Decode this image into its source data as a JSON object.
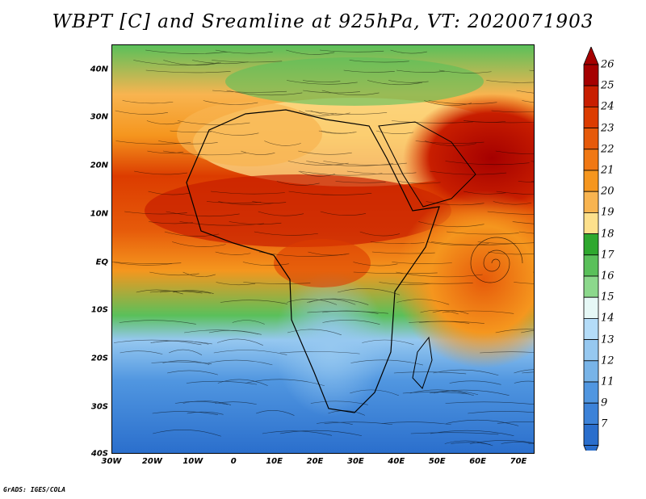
{
  "title": "WBPT [C] and Sreamline at 925hPa, VT: 2020071903",
  "lat_ticks": [
    "40N",
    "30N",
    "20N",
    "10N",
    "EQ",
    "10S",
    "20S",
    "30S",
    "40S"
  ],
  "lon_ticks": [
    "30W",
    "20W",
    "10W",
    "0",
    "10E",
    "20E",
    "30E",
    "40E",
    "50E",
    "60E",
    "70E"
  ],
  "colorbar": {
    "labels": [
      "26",
      "25",
      "24",
      "23",
      "22",
      "21",
      "20",
      "19",
      "18",
      "17",
      "16",
      "15",
      "14",
      "13",
      "12",
      "11",
      "9",
      "7"
    ],
    "colors": [
      "#a50000",
      "#c81e00",
      "#dc3c00",
      "#e65a0a",
      "#f07814",
      "#f5961e",
      "#f8b450",
      "#fde08c",
      "#2ea82e",
      "#5ac05a",
      "#8cd88c",
      "#e6f8f6",
      "#b4dcf8",
      "#96c8f0",
      "#78b4e8",
      "#5096e0",
      "#3c82d8",
      "#2a6ecc"
    ]
  },
  "credit": "GrADS: IGES/COLA"
}
